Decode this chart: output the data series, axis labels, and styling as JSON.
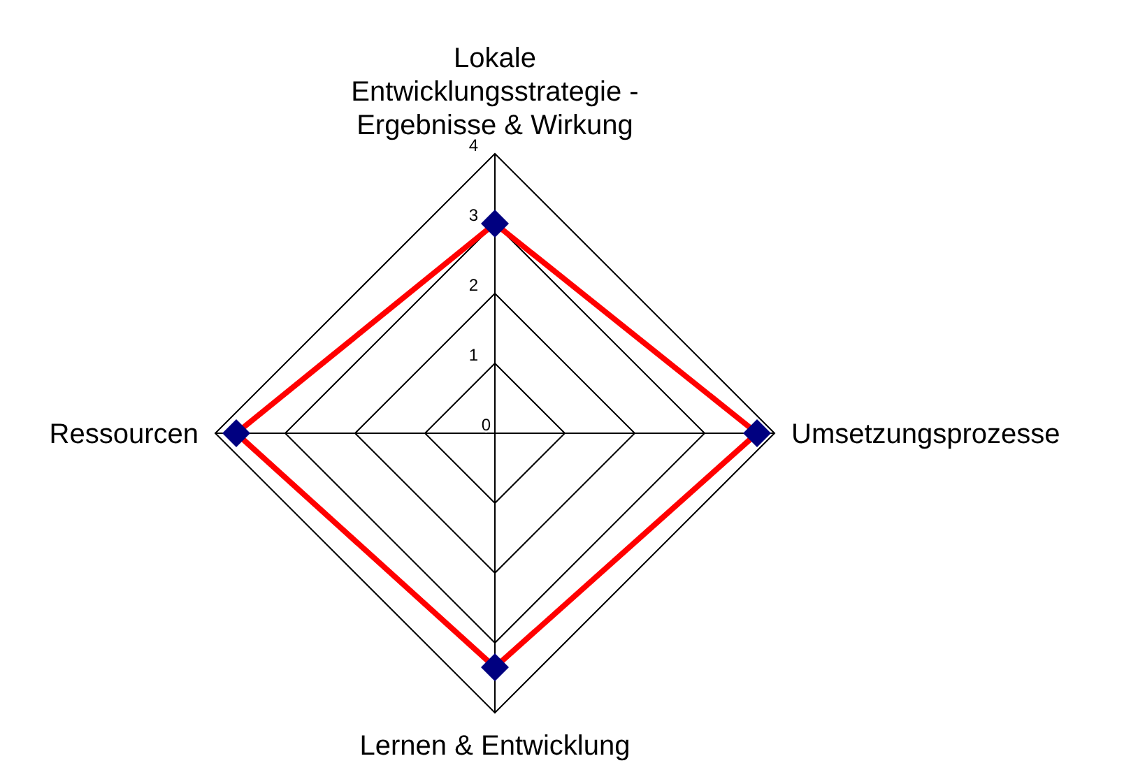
{
  "chart_data": {
    "type": "radar",
    "categories": [
      "Lokale\nEntwicklungsstrategie -\nErgebnisse & Wirkung",
      "Umsetzungsprozesse",
      "Lernen & Entwicklung",
      "Ressourcen"
    ],
    "series": [
      {
        "color": "#ff0000",
        "values": [
          3,
          3.75,
          3.35,
          3.7
        ]
      }
    ],
    "marker": "diamond",
    "ylim": [
      0,
      4
    ],
    "yticks": [
      0,
      1,
      2,
      3,
      4
    ],
    "grid": true
  }
}
